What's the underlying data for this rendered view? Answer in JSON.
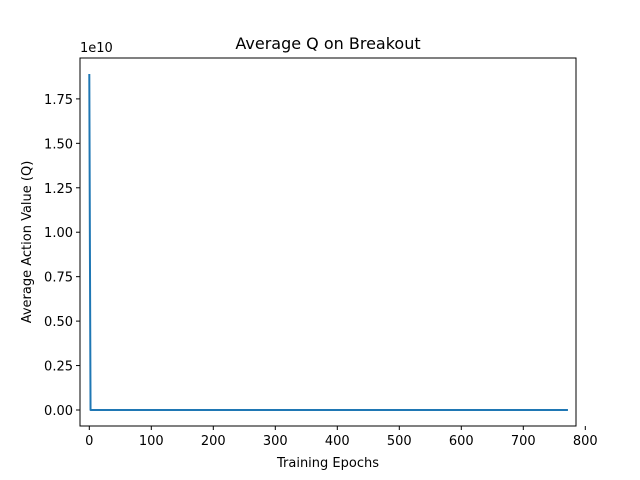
{
  "chart_data": {
    "type": "line",
    "title": "Average Q on Breakout",
    "xlabel": "Training Epochs",
    "ylabel": "Average Action Value (Q)",
    "y_offset_label": "1e10",
    "xlim": [
      -15,
      785
    ],
    "ylim": [
      -0.09,
      1.98
    ],
    "x_ticks": [
      0,
      100,
      200,
      300,
      400,
      500,
      600,
      700,
      800
    ],
    "y_ticks": [
      0.0,
      0.25,
      0.5,
      0.75,
      1.0,
      1.25,
      1.5,
      1.75
    ],
    "y_tick_labels": [
      "0.00",
      "0.25",
      "0.50",
      "0.75",
      "1.00",
      "1.25",
      "1.50",
      "1.75"
    ],
    "grid": false,
    "line_color": "#1f77b4",
    "series": [
      {
        "x": [
          0,
          1,
          2,
          3,
          10,
          50,
          100,
          200,
          300,
          400,
          500,
          600,
          700,
          772
        ],
        "y": [
          1.89,
          0.9,
          0.0,
          0.0,
          0.0,
          0.0,
          0.0,
          0.0,
          0.0,
          0.0,
          0.0,
          0.0,
          0.0,
          0.0
        ]
      }
    ]
  }
}
